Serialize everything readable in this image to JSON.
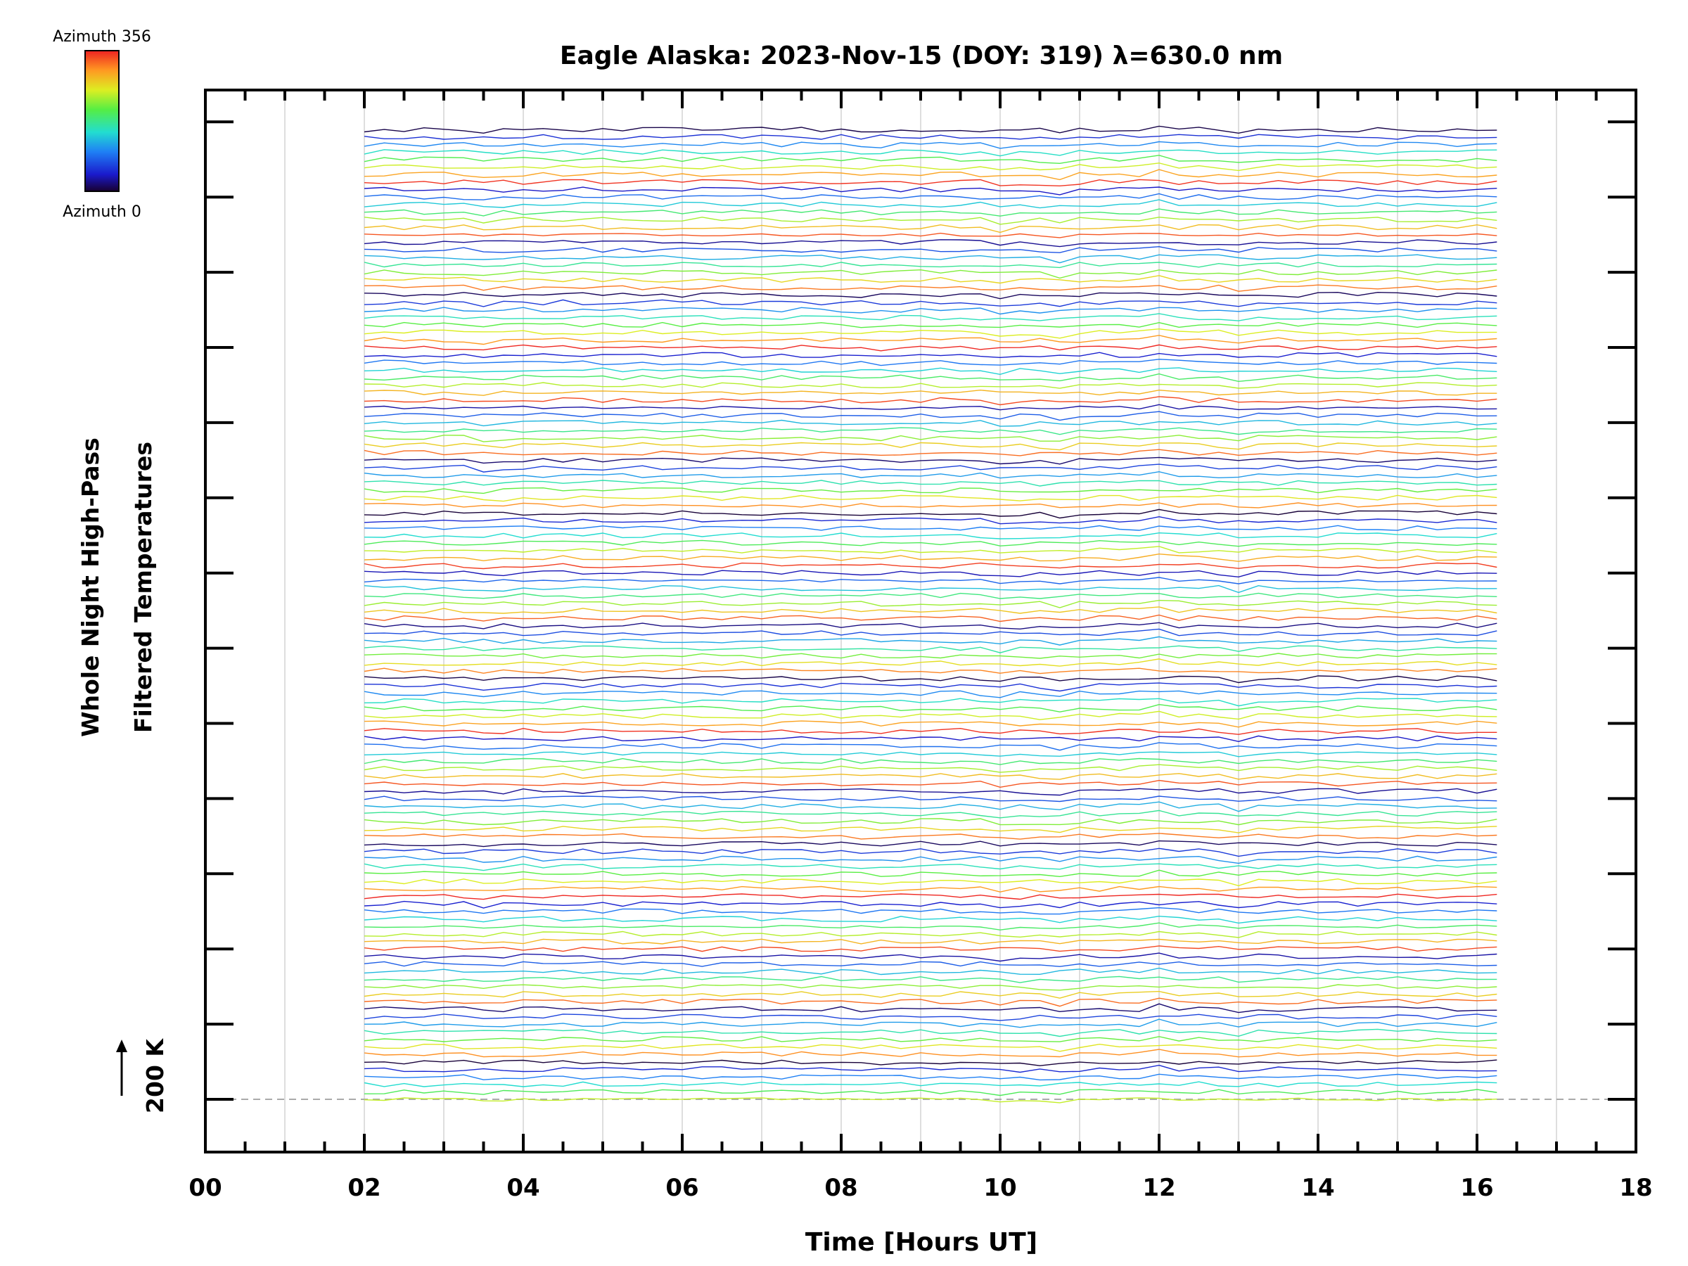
{
  "chart_data": {
    "type": "line",
    "title": "Eagle Alaska: 2023-Nov-15 (DOY: 319) λ=630.0 nm",
    "xlabel": "Time [Hours UT]",
    "ylabel_line1": "Whole Night High-Pass",
    "ylabel_line2": "Filtered Temperatures",
    "scale_label": "200 K",
    "xlim": [
      0,
      18
    ],
    "x_ticks": [
      "00",
      "02",
      "04",
      "06",
      "08",
      "10",
      "12",
      "14",
      "16",
      "18"
    ],
    "data_x_range": [
      2.0,
      16.25
    ],
    "sample_interval_hours": 0.25,
    "series_count": 130,
    "series_offset_step_K": 10,
    "baseline_K": 200,
    "colorbar": {
      "top_label": "Azimuth 356",
      "bottom_label": "Azimuth 0",
      "colormap": "rainbow"
    },
    "events": [
      {
        "time": 3.6,
        "amplitude_K": -9
      },
      {
        "time": 8.4,
        "amplitude_K": -5
      },
      {
        "time": 10.1,
        "amplitude_K": -12
      },
      {
        "time": 10.65,
        "amplitude_K": -16
      },
      {
        "time": 12.0,
        "amplitude_K": 6
      },
      {
        "time": 13.0,
        "amplitude_K": -6
      }
    ]
  }
}
